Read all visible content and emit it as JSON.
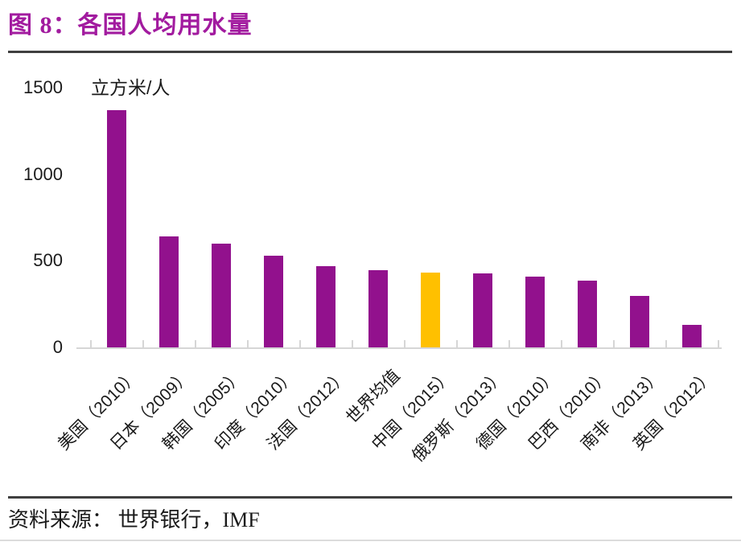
{
  "header": {
    "title": "图 8：各国人均用水量"
  },
  "footer": {
    "source": "资料来源： 世界银行，IMF"
  },
  "colors": {
    "title": "#A21B9F",
    "bar": "#92118D",
    "highlight": "#FFC000",
    "rule": "#3F3F3F",
    "axis": "#D6D6D6"
  },
  "chart_data": {
    "type": "bar",
    "title": "图 8：各国人均用水量",
    "unit_label": "立方米/人",
    "ylabel": "立方米/人",
    "categories": [
      "美国（2010）",
      "日本（2009）",
      "韩国（2005）",
      "印度（2010）",
      "法国（2012）",
      "世界均值",
      "中国（2015）",
      "俄罗斯（2013）",
      "德国（2010）",
      "巴西（2010）",
      "南非（2013）",
      "英国（2012）"
    ],
    "values": [
      1370,
      640,
      600,
      530,
      470,
      445,
      430,
      425,
      410,
      385,
      295,
      130
    ],
    "highlight_index": 6,
    "highlight_category": "中国（2015）",
    "ylim": [
      0,
      1500
    ],
    "yticks": [
      0,
      500,
      1000,
      1500
    ],
    "grid": false,
    "legend": false,
    "bar_color": "#92118D",
    "highlight_color": "#FFC000"
  }
}
